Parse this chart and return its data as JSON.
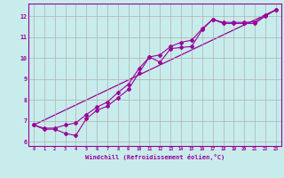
{
  "xlabel": "Windchill (Refroidissement éolien,°C)",
  "bg_color": "#c8ecec",
  "line_color": "#990099",
  "grid_color": "#b0b0b0",
  "xlim": [
    -0.5,
    23.5
  ],
  "ylim": [
    5.8,
    12.6
  ],
  "yticks": [
    6,
    7,
    8,
    9,
    10,
    11,
    12
  ],
  "xticks": [
    0,
    1,
    2,
    3,
    4,
    5,
    6,
    7,
    8,
    9,
    10,
    11,
    12,
    13,
    14,
    15,
    16,
    17,
    18,
    19,
    20,
    21,
    22,
    23
  ],
  "line1_x": [
    0,
    1,
    2,
    3,
    4,
    5,
    6,
    7,
    8,
    9,
    10,
    11,
    12,
    13,
    14,
    15,
    16,
    17,
    18,
    19,
    20,
    21,
    22,
    23
  ],
  "line1_y": [
    6.8,
    6.6,
    6.6,
    6.4,
    6.3,
    7.1,
    7.5,
    7.7,
    8.1,
    8.5,
    9.3,
    10.05,
    9.8,
    10.45,
    10.5,
    10.55,
    11.35,
    11.85,
    11.65,
    11.65,
    11.65,
    11.65,
    12.0,
    12.3
  ],
  "line2_x": [
    0,
    1,
    2,
    3,
    4,
    5,
    6,
    7,
    8,
    9,
    10,
    11,
    12,
    13,
    14,
    15,
    16,
    17,
    18,
    19,
    20,
    21,
    22,
    23
  ],
  "line2_y": [
    6.8,
    6.65,
    6.65,
    6.8,
    6.9,
    7.3,
    7.65,
    7.9,
    8.35,
    8.75,
    9.5,
    10.05,
    10.15,
    10.55,
    10.75,
    10.85,
    11.4,
    11.85,
    11.7,
    11.7,
    11.7,
    11.72,
    12.05,
    12.3
  ],
  "line3_x": [
    0,
    23
  ],
  "line3_y": [
    6.8,
    12.3
  ]
}
